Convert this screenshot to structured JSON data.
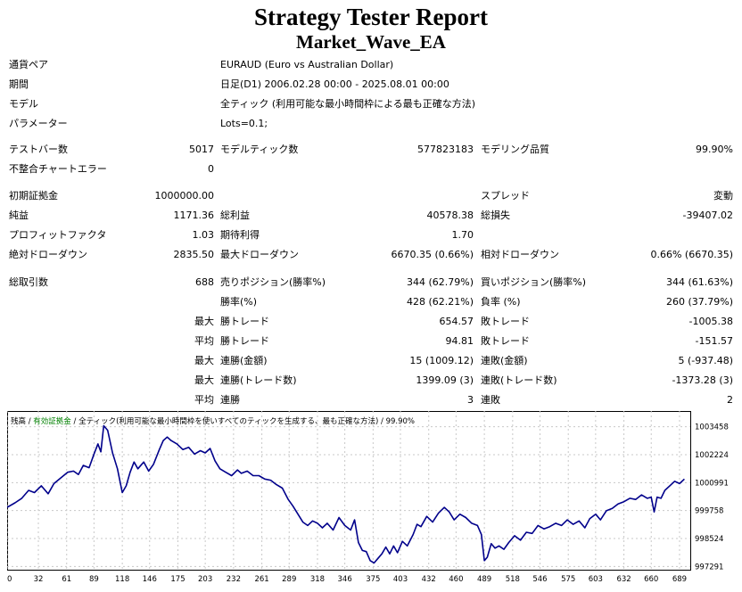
{
  "report": {
    "title": "Strategy Tester Report",
    "ea_name": "Market_Wave_EA"
  },
  "info": {
    "symbol_label": "通貨ペア",
    "symbol_value": "EURAUD (Euro vs Australian Dollar)",
    "period_label": "期間",
    "period_value": "日足(D1) 2006.02.28 00:00 - 2025.08.01 00:00",
    "model_label": "モデル",
    "model_value": "全ティック (利用可能な最小時間枠による最も正確な方法)",
    "params_label": "パラメーター",
    "params_value": "Lots=0.1;"
  },
  "stats": {
    "bars_label": "テストバー数",
    "bars_value": "5017",
    "ticks_label": "モデルティック数",
    "ticks_value": "577823183",
    "quality_label": "モデリング品質",
    "quality_value": "99.90%",
    "mismatch_label": "不整合チャートエラー",
    "mismatch_value": "0",
    "deposit_label": "初期証拠金",
    "deposit_value": "1000000.00",
    "spread_label": "スプレッド",
    "spread_value": "変動",
    "net_label": "純益",
    "net_value": "1171.36",
    "gross_profit_label": "総利益",
    "gross_profit_value": "40578.38",
    "gross_loss_label": "総損失",
    "gross_loss_value": "-39407.02",
    "pf_label": "プロフィットファクタ",
    "pf_value": "1.03",
    "expected_label": "期待利得",
    "expected_value": "1.70",
    "abs_dd_label": "絶対ドローダウン",
    "abs_dd_value": "2835.50",
    "max_dd_label": "最大ドローダウン",
    "max_dd_value": "6670.35 (0.66%)",
    "rel_dd_label": "相対ドローダウン",
    "rel_dd_value": "0.66% (6670.35)",
    "trades_label": "総取引数",
    "trades_value": "688",
    "short_label": "売りポジション(勝率%)",
    "short_value": "344 (62.79%)",
    "long_label": "買いポジション(勝率%)",
    "long_value": "344 (61.63%)",
    "win_label": "勝率(%)",
    "win_value": "428 (62.21%)",
    "loss_label": "負率 (%)",
    "loss_value": "260 (37.79%)",
    "max_label": "最大",
    "avg_label": "平均",
    "largest_win_label": "勝トレード",
    "largest_win_value": "654.57",
    "largest_loss_label": "敗トレード",
    "largest_loss_value": "-1005.38",
    "avg_win_label": "勝トレード",
    "avg_win_value": "94.81",
    "avg_loss_label": "敗トレード",
    "avg_loss_value": "-151.57",
    "max_consec_wins_money_label": "連勝(金額)",
    "max_consec_wins_money_value": "15 (1009.12)",
    "max_consec_losses_money_label": "連敗(金額)",
    "max_consec_losses_money_value": "5 (-937.48)",
    "max_consec_wins_count_label": "連勝(トレード数)",
    "max_consec_wins_count_value": "1399.09 (3)",
    "max_consec_losses_count_label": "連敗(トレード数)",
    "max_consec_losses_count_value": "-1373.28 (3)",
    "avg_consec_wins_label": "連勝",
    "avg_consec_wins_value": "3",
    "avg_consec_losses_label": "連敗",
    "avg_consec_losses_value": "2"
  },
  "chart_legend": {
    "balance": "残高",
    "sep1": " / ",
    "equity": "有効証拠金",
    "sep2": " / ",
    "model": "全ティック(利用可能な最小時間枠を使いすべてのティックを生成する、最も正確な方法)",
    "sep3": " / ",
    "quality": "99.90%"
  },
  "colors": {
    "balance_line": "#00008b",
    "equity_legend": "#008000",
    "grid": "#c8c8c8"
  },
  "chart_data": {
    "type": "line",
    "title": "",
    "xlabel": "",
    "ylabel": "",
    "x_ticks": [
      0,
      32,
      61,
      89,
      118,
      146,
      175,
      203,
      232,
      261,
      289,
      318,
      346,
      375,
      403,
      432,
      460,
      489,
      518,
      546,
      575,
      603,
      632,
      660,
      689
    ],
    "y_ticks": [
      997291,
      998524,
      999758,
      1000991,
      1002224,
      1003458
    ],
    "xlim": [
      0,
      700
    ],
    "ylim": [
      997150,
      1004150
    ],
    "grid": true,
    "series": [
      {
        "name": "残高",
        "points": [
          [
            0,
            999900
          ],
          [
            8,
            1000100
          ],
          [
            15,
            1000300
          ],
          [
            22,
            1000650
          ],
          [
            28,
            1000550
          ],
          [
            35,
            1000850
          ],
          [
            42,
            1000500
          ],
          [
            48,
            1000950
          ],
          [
            55,
            1001200
          ],
          [
            62,
            1001450
          ],
          [
            68,
            1001500
          ],
          [
            73,
            1001350
          ],
          [
            78,
            1001750
          ],
          [
            84,
            1001650
          ],
          [
            89,
            1002250
          ],
          [
            93,
            1002700
          ],
          [
            96,
            1002350
          ],
          [
            99,
            1003500
          ],
          [
            103,
            1003300
          ],
          [
            108,
            1002300
          ],
          [
            113,
            1001600
          ],
          [
            118,
            1000550
          ],
          [
            122,
            1000850
          ],
          [
            126,
            1001450
          ],
          [
            130,
            1001900
          ],
          [
            134,
            1001600
          ],
          [
            140,
            1001900
          ],
          [
            145,
            1001500
          ],
          [
            150,
            1001800
          ],
          [
            156,
            1002450
          ],
          [
            160,
            1002850
          ],
          [
            164,
            1003000
          ],
          [
            168,
            1002850
          ],
          [
            174,
            1002700
          ],
          [
            180,
            1002450
          ],
          [
            186,
            1002550
          ],
          [
            192,
            1002250
          ],
          [
            198,
            1002400
          ],
          [
            203,
            1002300
          ],
          [
            208,
            1002500
          ],
          [
            213,
            1001950
          ],
          [
            218,
            1001600
          ],
          [
            224,
            1001450
          ],
          [
            230,
            1001300
          ],
          [
            236,
            1001550
          ],
          [
            240,
            1001400
          ],
          [
            246,
            1001500
          ],
          [
            252,
            1001300
          ],
          [
            258,
            1001300
          ],
          [
            264,
            1001150
          ],
          [
            270,
            1001100
          ],
          [
            276,
            1000900
          ],
          [
            282,
            1000750
          ],
          [
            288,
            1000250
          ],
          [
            293,
            999950
          ],
          [
            298,
            999600
          ],
          [
            303,
            999250
          ],
          [
            308,
            999100
          ],
          [
            313,
            999300
          ],
          [
            318,
            999200
          ],
          [
            323,
            999000
          ],
          [
            328,
            999200
          ],
          [
            334,
            998900
          ],
          [
            340,
            999450
          ],
          [
            346,
            999100
          ],
          [
            352,
            998900
          ],
          [
            356,
            999350
          ],
          [
            360,
            998350
          ],
          [
            364,
            998000
          ],
          [
            368,
            997950
          ],
          [
            372,
            997550
          ],
          [
            376,
            997450
          ],
          [
            380,
            997650
          ],
          [
            384,
            997850
          ],
          [
            388,
            998150
          ],
          [
            392,
            997850
          ],
          [
            396,
            998200
          ],
          [
            400,
            997900
          ],
          [
            405,
            998400
          ],
          [
            410,
            998200
          ],
          [
            416,
            998700
          ],
          [
            420,
            999150
          ],
          [
            424,
            999050
          ],
          [
            430,
            999500
          ],
          [
            436,
            999250
          ],
          [
            442,
            999650
          ],
          [
            448,
            999900
          ],
          [
            453,
            999700
          ],
          [
            458,
            999350
          ],
          [
            464,
            999600
          ],
          [
            470,
            999450
          ],
          [
            476,
            999200
          ],
          [
            482,
            999100
          ],
          [
            486,
            998700
          ],
          [
            489,
            997550
          ],
          [
            492,
            997700
          ],
          [
            496,
            998300
          ],
          [
            500,
            998100
          ],
          [
            504,
            998200
          ],
          [
            509,
            998050
          ],
          [
            514,
            998350
          ],
          [
            520,
            998650
          ],
          [
            526,
            998450
          ],
          [
            532,
            998800
          ],
          [
            538,
            998750
          ],
          [
            544,
            999100
          ],
          [
            550,
            998950
          ],
          [
            556,
            999050
          ],
          [
            562,
            999200
          ],
          [
            568,
            999100
          ],
          [
            574,
            999350
          ],
          [
            580,
            999150
          ],
          [
            586,
            999300
          ],
          [
            592,
            999000
          ],
          [
            597,
            999400
          ],
          [
            603,
            999600
          ],
          [
            608,
            999350
          ],
          [
            614,
            999750
          ],
          [
            620,
            999850
          ],
          [
            626,
            1000050
          ],
          [
            632,
            1000150
          ],
          [
            638,
            1000300
          ],
          [
            644,
            1000250
          ],
          [
            650,
            1000450
          ],
          [
            656,
            1000300
          ],
          [
            660,
            1000350
          ],
          [
            663,
            999700
          ],
          [
            666,
            1000350
          ],
          [
            670,
            1000300
          ],
          [
            674,
            1000650
          ],
          [
            679,
            1000850
          ],
          [
            684,
            1001050
          ],
          [
            689,
            1000950
          ],
          [
            694,
            1001150
          ]
        ]
      }
    ]
  }
}
